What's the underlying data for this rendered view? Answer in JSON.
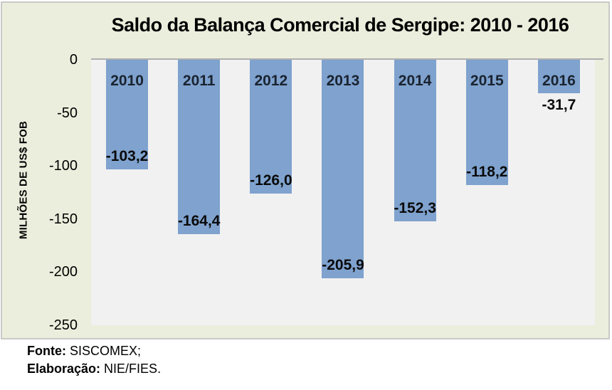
{
  "chart_data": {
    "type": "bar",
    "title": "Saldo da Balança Comercial de Sergipe: 2010 - 2016",
    "xlabel": "",
    "ylabel": "MILHÕES DE US$ FOB",
    "categories": [
      "2010",
      "2011",
      "2012",
      "2013",
      "2014",
      "2015",
      "2016"
    ],
    "values": [
      -103.2,
      -164.4,
      -126.0,
      -205.9,
      -152.3,
      -118.2,
      -31.7
    ],
    "value_labels": [
      "-103,2",
      "-164,4",
      "-126,0",
      "-205,9",
      "-152,3",
      "-118,2",
      "-31,7"
    ],
    "ylim": [
      -250,
      0
    ],
    "ytick_values": [
      0,
      -50,
      -100,
      -150,
      -200,
      -250
    ],
    "ytick_labels": [
      "0",
      "-50",
      "-100",
      "-150",
      "-200",
      "-250"
    ],
    "grid": false,
    "legend": false,
    "bar_gap_ratio": 0.42
  },
  "footer": {
    "source_label": "Fonte:",
    "source_value": " SISCOMEX;",
    "elaboration_label": "Elaboração:",
    "elaboration_value": " NIE/FIES."
  },
  "colors": {
    "chart_background": "#EBEEDC",
    "plot_background": "#F1F1F1",
    "bar": "#7FA2CE",
    "axis_line": "#AFAFAF",
    "frame_border": "#C9C9C9",
    "title_text": "#000000",
    "category_label_text": "#1A2330"
  }
}
